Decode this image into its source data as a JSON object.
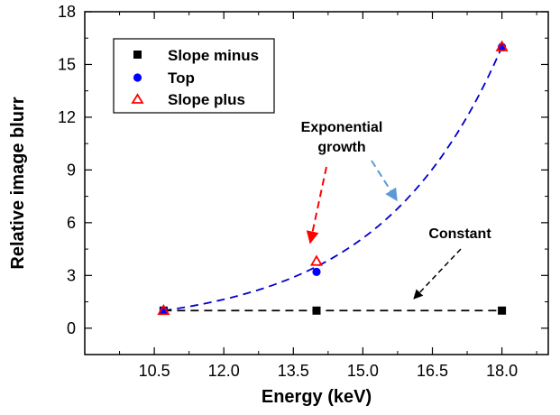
{
  "chart_data": {
    "type": "scatter",
    "xlabel": "Energy (keV)",
    "ylabel": "Relative image blurr",
    "xlim": [
      9.0,
      19.0
    ],
    "ylim": [
      -1.5,
      18
    ],
    "xticks": [
      "10.5",
      "12.0",
      "13.5",
      "15.0",
      "16.5",
      "18.0"
    ],
    "yticks": [
      "0",
      "3",
      "6",
      "9",
      "12",
      "15",
      "18"
    ],
    "grid": false,
    "legend_position": "top-left",
    "series": [
      {
        "name": "Slope minus",
        "marker": "filled-square",
        "color": "#000000",
        "x": [
          10.7,
          14.0,
          18.0
        ],
        "y": [
          1.0,
          1.0,
          1.0
        ]
      },
      {
        "name": "Top",
        "marker": "filled-circle",
        "color": "#0000ff",
        "x": [
          10.7,
          14.0,
          18.0
        ],
        "y": [
          1.0,
          3.2,
          16.0
        ]
      },
      {
        "name": "Slope plus",
        "marker": "open-triangle",
        "color": "#ff0000",
        "x": [
          10.7,
          14.0,
          18.0
        ],
        "y": [
          1.0,
          3.8,
          16.0
        ]
      }
    ],
    "fits": [
      {
        "kind": "exponential",
        "color": "#0000cc",
        "style": "dashed",
        "x_from": 10.7,
        "x_to": 18.0,
        "y_start": 1.0,
        "y_end": 16.0
      },
      {
        "kind": "constant",
        "color": "#000000",
        "style": "dashed",
        "x_from": 10.7,
        "x_to": 18.0,
        "y_value": 1.0
      }
    ],
    "annotations": [
      {
        "lines": [
          "Exponential",
          "growth"
        ],
        "anchor_x": 14.5,
        "anchor_y": 10.4
      },
      {
        "lines": [
          "Constant"
        ],
        "anchor_x": 17.0,
        "anchor_y": 5.3
      }
    ]
  }
}
